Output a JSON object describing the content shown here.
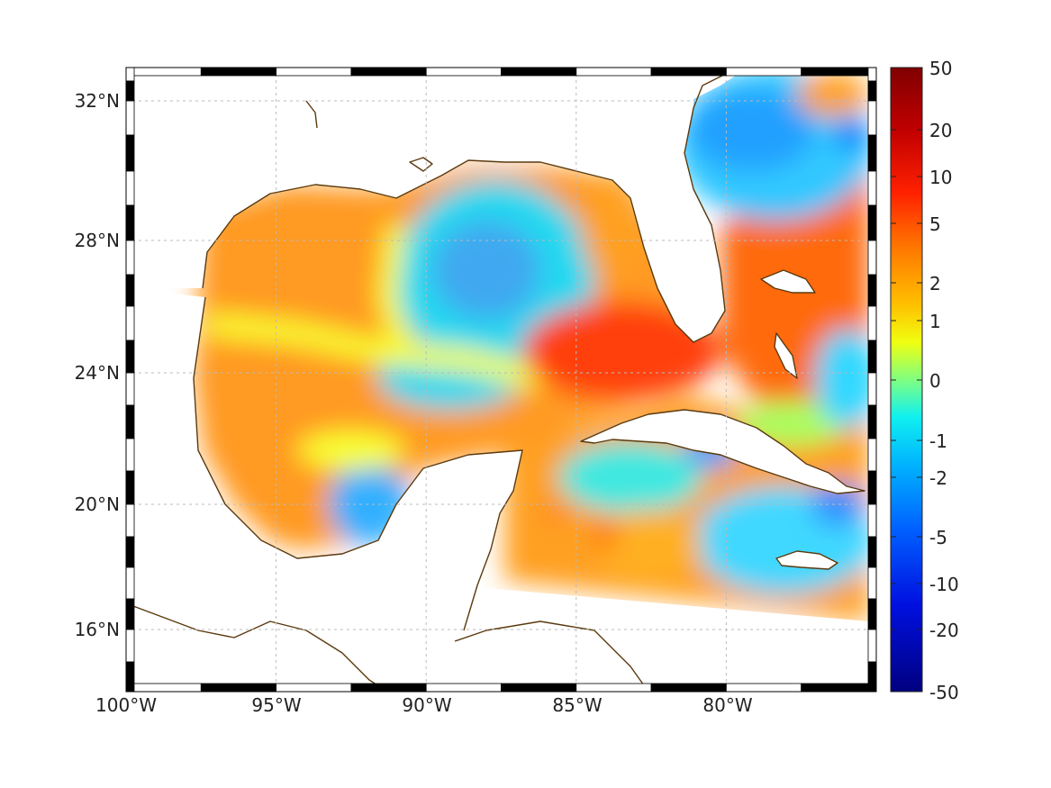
{
  "map": {
    "lon_ticks": [
      "100°W",
      "95°W",
      "90°W",
      "85°W",
      "80°W"
    ],
    "lat_ticks": [
      "32°N",
      "28°N",
      "24°N",
      "20°N",
      "16°N"
    ],
    "lon_range": [
      -100,
      -75
    ],
    "lat_range": [
      14.5,
      33
    ],
    "grid": true,
    "frame": "black-white checkered border",
    "coastline_color": "#5b3a0e",
    "land_color": "#ffffff"
  },
  "colorbar": {
    "tick_labels": [
      "50",
      "20",
      "10",
      "5",
      "2",
      "1",
      "0",
      "-1",
      "-2",
      "-5",
      "-10",
      "-20",
      "-50"
    ],
    "colormap": "jet",
    "range": [
      -50,
      50
    ],
    "scale": "nonlinear (symmetric)",
    "colors": [
      "#800000",
      "#ff0000",
      "#ff8000",
      "#ffff00",
      "#80ff80",
      "#00ffff",
      "#0080ff",
      "#0000ff",
      "#000080"
    ]
  }
}
